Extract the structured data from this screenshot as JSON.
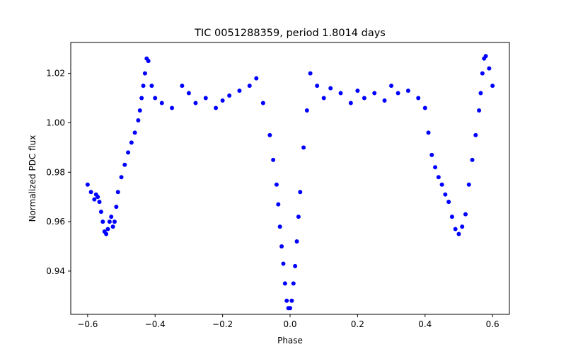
{
  "chart_data": {
    "type": "scatter",
    "title": "TIC 0051288359, period 1.8014 days",
    "xlabel": "Phase",
    "ylabel": "Normalized PDC flux",
    "xlim": [
      -0.65,
      0.65
    ],
    "ylim": [
      0.9225,
      1.0325
    ],
    "xticks": [
      -0.6,
      -0.4,
      -0.2,
      0.0,
      0.2,
      0.4,
      0.6
    ],
    "xtick_labels": [
      "−0.6",
      "−0.4",
      "−0.2",
      "0.0",
      "0.2",
      "0.4",
      "0.6"
    ],
    "yticks": [
      0.94,
      0.96,
      0.98,
      1.0,
      1.02
    ],
    "ytick_labels": [
      "0.94",
      "0.96",
      "0.98",
      "1.00",
      "1.02"
    ],
    "grid": false,
    "marker_color": "#0000ff",
    "series": [
      {
        "x": [
          -0.6,
          -0.59,
          -0.58,
          -0.575,
          -0.57,
          -0.565,
          -0.56,
          -0.555,
          -0.55,
          -0.545,
          -0.54,
          -0.535,
          -0.53,
          -0.525,
          -0.52,
          -0.515,
          -0.51,
          -0.5,
          -0.49,
          -0.48,
          -0.47,
          -0.46,
          -0.45,
          -0.445,
          -0.44,
          -0.435,
          -0.43,
          -0.425,
          -0.42,
          -0.41,
          -0.4,
          -0.38,
          -0.35,
          -0.32,
          -0.3,
          -0.28,
          -0.25,
          -0.22,
          -0.2,
          -0.18,
          -0.15,
          -0.12,
          -0.1,
          -0.08,
          -0.06,
          -0.05,
          -0.04,
          -0.035,
          -0.03,
          -0.025,
          -0.02,
          -0.015,
          -0.01,
          -0.005,
          0.0,
          0.005,
          0.01,
          0.015,
          0.02,
          0.025,
          0.03,
          0.04,
          0.05,
          0.06,
          0.08,
          0.1,
          0.12,
          0.15,
          0.18,
          0.2,
          0.22,
          0.25,
          0.28,
          0.3,
          0.32,
          0.35,
          0.38,
          0.4,
          0.41,
          0.42,
          0.43,
          0.44,
          0.45,
          0.46,
          0.47,
          0.48,
          0.49,
          0.5,
          0.51,
          0.52,
          0.53,
          0.54,
          0.55,
          0.56,
          0.565,
          0.57,
          0.575,
          0.58,
          0.59,
          0.6
        ],
        "y": [
          0.975,
          0.972,
          0.969,
          0.971,
          0.97,
          0.968,
          0.964,
          0.96,
          0.956,
          0.955,
          0.957,
          0.96,
          0.962,
          0.958,
          0.96,
          0.966,
          0.972,
          0.978,
          0.983,
          0.988,
          0.992,
          0.996,
          1.001,
          1.005,
          1.01,
          1.015,
          1.02,
          1.026,
          1.025,
          1.015,
          1.01,
          1.008,
          1.006,
          1.015,
          1.012,
          1.008,
          1.01,
          1.006,
          1.009,
          1.011,
          1.013,
          1.015,
          1.018,
          1.008,
          0.995,
          0.985,
          0.975,
          0.967,
          0.958,
          0.95,
          0.943,
          0.935,
          0.928,
          0.925,
          0.925,
          0.928,
          0.935,
          0.942,
          0.952,
          0.962,
          0.972,
          0.99,
          1.005,
          1.02,
          1.015,
          1.01,
          1.014,
          1.012,
          1.008,
          1.013,
          1.01,
          1.012,
          1.009,
          1.015,
          1.012,
          1.013,
          1.01,
          1.006,
          0.996,
          0.987,
          0.982,
          0.978,
          0.975,
          0.971,
          0.968,
          0.962,
          0.957,
          0.955,
          0.958,
          0.963,
          0.975,
          0.985,
          0.995,
          1.005,
          1.012,
          1.02,
          1.026,
          1.027,
          1.022,
          1.015
        ]
      }
    ]
  }
}
